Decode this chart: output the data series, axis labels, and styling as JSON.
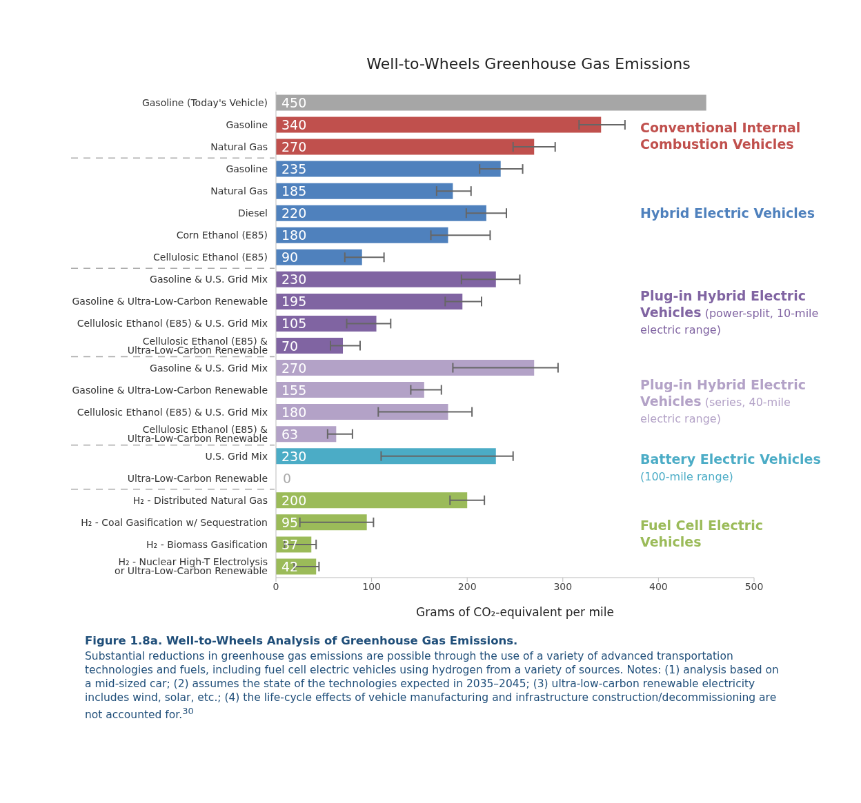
{
  "chart_data": {
    "type": "bar",
    "orientation": "horizontal",
    "title": "Well-to-Wheels Greenhouse Gas Emissions",
    "xlabel": "Grams of CO₂-equivalent per mile",
    "categories": [
      "Gasoline (Today's Vehicle)",
      "Gasoline",
      "Natural Gas",
      "Gasoline",
      "Natural Gas",
      "Diesel",
      "Corn Ethanol (E85)",
      "Cellulosic Ethanol (E85)",
      "Gasoline & U.S. Grid Mix",
      "Gasoline & Ultra-Low-Carbon Renewable",
      "Cellulosic Ethanol (E85) & U.S. Grid Mix",
      "Cellulosic Ethanol (E85) & Ultra-Low-Carbon Renewable",
      "Gasoline & U.S. Grid Mix",
      "Gasoline & Ultra-Low-Carbon Renewable",
      "Cellulosic Ethanol (E85) & U.S. Grid Mix",
      "Cellulosic Ethanol (E85) & Ultra-Low-Carbon Renewable",
      "U.S. Grid Mix",
      "Ultra-Low-Carbon Renewable",
      "H₂ - Distributed Natural Gas",
      "H₂ - Coal Gasification w/ Sequestration",
      "H₂ - Biomass Gasification",
      "H₂ - Nuclear High-T Electrolysis or Ultra-Low-Carbon Renewable"
    ],
    "series": [
      {
        "color": "#a6a6a6",
        "values": [
          450,
          null,
          null,
          null,
          null,
          null,
          null,
          null,
          null,
          null,
          null,
          null,
          null,
          null,
          null,
          null,
          null,
          null,
          null,
          null,
          null,
          null
        ],
        "errors": [
          null,
          null,
          null,
          null,
          null,
          null,
          null,
          null,
          null,
          null,
          null,
          null,
          null,
          null,
          null,
          null,
          null,
          null,
          null,
          null,
          null,
          null
        ]
      },
      {
        "name": "Conventional Internal Combustion Vehicles",
        "color": "#c0504d",
        "values": [
          null,
          340,
          270,
          null,
          null,
          null,
          null,
          null,
          null,
          null,
          null,
          null,
          null,
          null,
          null,
          null,
          null,
          null,
          null,
          null,
          null,
          null
        ],
        "errors": [
          null,
          [
            317,
            365
          ],
          [
            248,
            292
          ],
          null,
          null,
          null,
          null,
          null,
          null,
          null,
          null,
          null,
          null,
          null,
          null,
          null,
          null,
          null,
          null,
          null,
          null,
          null
        ]
      },
      {
        "name": "Hybrid Electric Vehicles",
        "color": "#4f81bd",
        "values": [
          null,
          null,
          null,
          235,
          185,
          220,
          180,
          90,
          null,
          null,
          null,
          null,
          null,
          null,
          null,
          null,
          null,
          null,
          null,
          null,
          null,
          null
        ],
        "errors": [
          null,
          null,
          null,
          [
            213,
            258
          ],
          [
            168,
            204
          ],
          [
            199,
            241
          ],
          [
            162,
            224
          ],
          [
            72,
            113
          ],
          null,
          null,
          null,
          null,
          null,
          null,
          null,
          null,
          null,
          null,
          null,
          null,
          null,
          null
        ]
      },
      {
        "name": "Plug-in Hybrid Electric Vehicles (power-split, 10-mile electric range)",
        "color": "#8064a2",
        "values": [
          null,
          null,
          null,
          null,
          null,
          null,
          null,
          null,
          230,
          195,
          105,
          70,
          null,
          null,
          null,
          null,
          null,
          null,
          null,
          null,
          null,
          null
        ],
        "errors": [
          null,
          null,
          null,
          null,
          null,
          null,
          null,
          null,
          [
            194,
            255
          ],
          [
            177,
            215
          ],
          [
            74,
            120
          ],
          [
            57,
            88
          ],
          null,
          null,
          null,
          null,
          null,
          null,
          null,
          null,
          null,
          null
        ]
      },
      {
        "name": "Plug-in Hybrid Electric Vehicles (series, 40-mile electric range)",
        "color": "#b3a2c7",
        "values": [
          null,
          null,
          null,
          null,
          null,
          null,
          null,
          null,
          null,
          null,
          null,
          null,
          270,
          155,
          180,
          63,
          null,
          null,
          null,
          null,
          null,
          null
        ],
        "errors": [
          null,
          null,
          null,
          null,
          null,
          null,
          null,
          null,
          null,
          null,
          null,
          null,
          [
            185,
            295
          ],
          [
            141,
            173
          ],
          [
            107,
            205
          ],
          [
            54,
            80
          ],
          null,
          null,
          null,
          null,
          null,
          null
        ]
      },
      {
        "name": "Battery Electric Vehicles (100-mile range)",
        "color": "#4bacc6",
        "values": [
          null,
          null,
          null,
          null,
          null,
          null,
          null,
          null,
          null,
          null,
          null,
          null,
          null,
          null,
          null,
          null,
          230,
          0,
          null,
          null,
          null,
          null
        ],
        "errors": [
          null,
          null,
          null,
          null,
          null,
          null,
          null,
          null,
          null,
          null,
          null,
          null,
          null,
          null,
          null,
          null,
          [
            110,
            248
          ],
          null,
          null,
          null,
          null,
          null
        ]
      },
      {
        "name": "Fuel Cell Electric Vehicles",
        "color": "#9bbb59",
        "values": [
          null,
          null,
          null,
          null,
          null,
          null,
          null,
          null,
          null,
          null,
          null,
          null,
          null,
          null,
          null,
          null,
          null,
          null,
          200,
          95,
          37,
          42
        ],
        "errors": [
          null,
          null,
          null,
          null,
          null,
          null,
          null,
          null,
          null,
          null,
          null,
          null,
          null,
          null,
          null,
          null,
          null,
          null,
          [
            182,
            218
          ],
          [
            25,
            102
          ],
          [
            9,
            42
          ],
          [
            19,
            45
          ]
        ]
      }
    ],
    "xlim": [
      0,
      500
    ],
    "xticks": [
      0,
      100,
      200,
      300,
      400,
      500
    ],
    "data_labels": true,
    "grid": false,
    "legend": false,
    "annotations": [
      "Figure 1.8a. Well-to-Wheels Analysis of Greenhouse Gas Emissions.",
      "Substantial reductions in greenhouse gas emissions are possible through the use of a variety of advanced transportation technologies and fuels, including fuel cell electric vehicles using hydrogen from a variety of sources. Notes: (1) analysis based on a mid-sized car; (2) assumes the state of the technologies expected in 2035–2045; (3) ultra-low-carbon renewable electricity includes wind, solar, etc.; (4) the life-cycle effects of vehicle manufacturing and infrastructure construction/decommissioning are not accounted for.$^{30}$"
    ]
  }
}
